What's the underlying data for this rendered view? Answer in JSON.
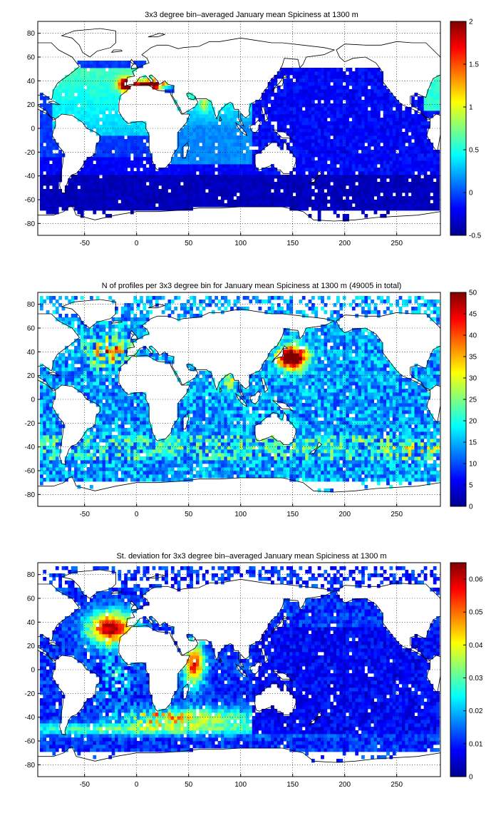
{
  "chart_data": [
    {
      "type": "heatmap",
      "title": "3x3 degree bin–averaged January mean Spiciness at 1300 m",
      "xlabel": "",
      "ylabel": "",
      "x_ticks": [
        "-50",
        "0",
        "50",
        "100",
        "150",
        "200",
        "250"
      ],
      "y_ticks": [
        "80",
        "60",
        "40",
        "20",
        "0",
        "-20",
        "-40",
        "-60",
        "-80"
      ],
      "colorbar_ticks": [
        "2",
        "1.5",
        "1",
        "0.5",
        "0",
        "-0.5"
      ],
      "clim": [
        -0.5,
        2
      ],
      "xlim": [
        -95,
        292
      ],
      "ylim": [
        -90,
        90
      ],
      "grid": true,
      "colormap": "jet",
      "field": "spice"
    },
    {
      "type": "heatmap",
      "title": "N of profiles per 3x3 degree bin for January mean Spiciness at 1300 m (49005 in total)",
      "xlabel": "",
      "ylabel": "",
      "x_ticks": [
        "-50",
        "0",
        "50",
        "100",
        "150",
        "200",
        "250"
      ],
      "y_ticks": [
        "80",
        "60",
        "40",
        "20",
        "0",
        "-20",
        "-40",
        "-60",
        "-80"
      ],
      "colorbar_ticks": [
        "50",
        "45",
        "40",
        "35",
        "30",
        "25",
        "20",
        "15",
        "10",
        "5",
        "0"
      ],
      "clim": [
        0,
        50
      ],
      "xlim": [
        -95,
        292
      ],
      "ylim": [
        -90,
        90
      ],
      "grid": true,
      "colormap": "jet",
      "field": "count"
    },
    {
      "type": "heatmap",
      "title": "St. deviation for 3x3 degree bin–averaged January mean Spiciness at 1300 m",
      "xlabel": "",
      "ylabel": "",
      "x_ticks": [
        "-50",
        "0",
        "50",
        "100",
        "150",
        "200",
        "250"
      ],
      "y_ticks": [
        "80",
        "60",
        "40",
        "20",
        "0",
        "-20",
        "-40",
        "-60",
        "-80"
      ],
      "colorbar_ticks": [
        "0.06",
        "0.05",
        "0.04",
        "0.03",
        "0.02",
        "0.01",
        "0"
      ],
      "clim": [
        0,
        0.065
      ],
      "xlim": [
        -95,
        292
      ],
      "ylim": [
        -90,
        90
      ],
      "grid": true,
      "colormap": "jet",
      "field": "std"
    }
  ]
}
